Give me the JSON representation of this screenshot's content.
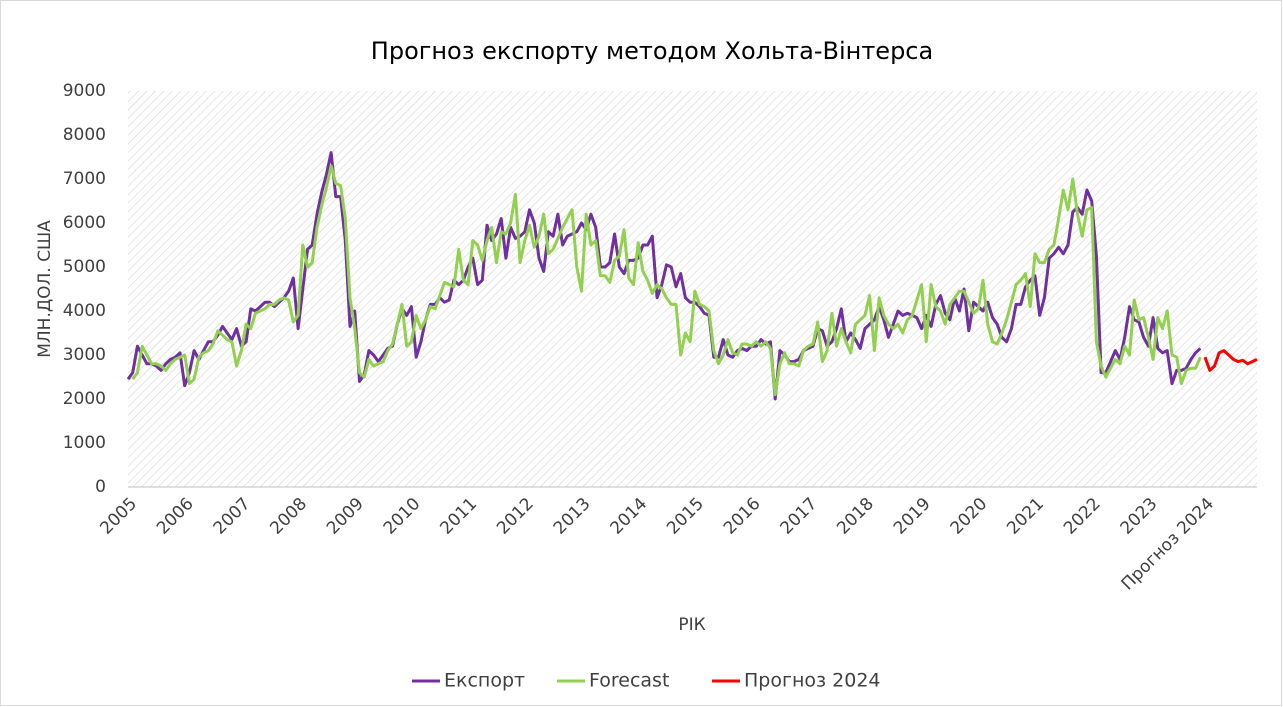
{
  "chart_data": {
    "type": "line",
    "title": "Прогноз експорту методом Хольта-Вінтерса",
    "x_label": "РІК",
    "y_label": "МЛН.ДОЛ. США",
    "categories": [
      "2005",
      null,
      null,
      null,
      null,
      null,
      null,
      null,
      null,
      null,
      null,
      null,
      "2006",
      null,
      null,
      null,
      null,
      null,
      null,
      null,
      null,
      null,
      null,
      null,
      "2007",
      null,
      null,
      null,
      null,
      null,
      null,
      null,
      null,
      null,
      null,
      null,
      "2008",
      null,
      null,
      null,
      null,
      null,
      null,
      null,
      null,
      null,
      null,
      null,
      "2009",
      null,
      null,
      null,
      null,
      null,
      null,
      null,
      null,
      null,
      null,
      null,
      "2010",
      null,
      null,
      null,
      null,
      null,
      null,
      null,
      null,
      null,
      null,
      null,
      "2011",
      null,
      null,
      null,
      null,
      null,
      null,
      null,
      null,
      null,
      null,
      null,
      "2012",
      null,
      null,
      null,
      null,
      null,
      null,
      null,
      null,
      null,
      null,
      null,
      "2013",
      null,
      null,
      null,
      null,
      null,
      null,
      null,
      null,
      null,
      null,
      null,
      "2014",
      null,
      null,
      null,
      null,
      null,
      null,
      null,
      null,
      null,
      null,
      null,
      "2015",
      null,
      null,
      null,
      null,
      null,
      null,
      null,
      null,
      null,
      null,
      null,
      "2016",
      null,
      null,
      null,
      null,
      null,
      null,
      null,
      null,
      null,
      null,
      null,
      "2017",
      null,
      null,
      null,
      null,
      null,
      null,
      null,
      null,
      null,
      null,
      null,
      "2018",
      null,
      null,
      null,
      null,
      null,
      null,
      null,
      null,
      null,
      null,
      null,
      "2019",
      null,
      null,
      null,
      null,
      null,
      null,
      null,
      null,
      null,
      null,
      null,
      "2020",
      null,
      null,
      null,
      null,
      null,
      null,
      null,
      null,
      null,
      null,
      null,
      "2021",
      null,
      null,
      null,
      null,
      null,
      null,
      null,
      null,
      null,
      null,
      null,
      "2022",
      null,
      null,
      null,
      null,
      null,
      null,
      null,
      null,
      null,
      null,
      null,
      "2023",
      null,
      null,
      null,
      null,
      null,
      null,
      null,
      null,
      null,
      null,
      null,
      "Прогноз 2024",
      null,
      null,
      null,
      null,
      null,
      null,
      null,
      null,
      null,
      null,
      null
    ],
    "series": [
      {
        "name": "Експорт",
        "color": "#7030a0",
        "values": [
          2450,
          2600,
          3200,
          3000,
          2800,
          2800,
          2750,
          2650,
          2800,
          2900,
          2950,
          3050,
          2300,
          2600,
          3100,
          2900,
          3100,
          3300,
          3300,
          3450,
          3650,
          3500,
          3350,
          3600,
          3200,
          3300,
          4050,
          4000,
          4100,
          4200,
          4200,
          4100,
          4200,
          4300,
          4450,
          4750,
          3600,
          4500,
          5400,
          5500,
          6200,
          6700,
          7100,
          7600,
          6600,
          6600,
          5600,
          3650,
          4000,
          2400,
          2550,
          3100,
          3000,
          2850,
          3000,
          3150,
          3200,
          3700,
          4050,
          3900,
          4100,
          2950,
          3300,
          3800,
          4150,
          4150,
          4300,
          4200,
          4250,
          4700,
          4600,
          4700,
          5000,
          5200,
          4600,
          4700,
          5950,
          5600,
          5750,
          6100,
          5200,
          5900,
          5650,
          5700,
          5800,
          6300,
          6000,
          5200,
          4900,
          5800,
          5700,
          6200,
          5500,
          5700,
          5750,
          5800,
          6000,
          5850,
          6200,
          5900,
          5000,
          5000,
          5100,
          5750,
          5000,
          4850,
          5150,
          5150,
          5200,
          5500,
          5500,
          5700,
          4300,
          4600,
          5050,
          5000,
          4550,
          4850,
          4300,
          4200,
          4200,
          4100,
          3950,
          3900,
          2950,
          2950,
          3350,
          3000,
          2950,
          3100,
          3150,
          3100,
          3200,
          3200,
          3350,
          3250,
          3300,
          2000,
          3100,
          3000,
          2850,
          2850,
          2900,
          3100,
          3150,
          3200,
          3600,
          3550,
          3200,
          3300,
          3600,
          4050,
          3300,
          3500,
          3350,
          3150,
          3600,
          3700,
          3800,
          4100,
          3800,
          3400,
          3700,
          4000,
          3900,
          3950,
          3900,
          3850,
          3600,
          3900,
          3650,
          4150,
          4350,
          3950,
          3800,
          4300,
          4000,
          4500,
          3550,
          4200,
          4100,
          4000,
          4200,
          3850,
          3700,
          3400,
          3300,
          3600,
          4150,
          4150,
          4550,
          4700,
          4800,
          3900,
          4300,
          5200,
          5300,
          5450,
          5300,
          5500,
          6250,
          6350,
          6200,
          6750,
          6500,
          5250,
          2600,
          2600,
          2850,
          3100,
          2900,
          3400,
          4100,
          3800,
          3750,
          3400,
          3200,
          3850,
          3150,
          3050,
          3100,
          2350,
          2650,
          2650,
          2700,
          2900,
          3050,
          3150,
          null,
          null,
          null,
          null,
          null,
          null,
          null,
          null,
          null,
          null,
          null,
          null
        ]
      },
      {
        "name": "Forecast",
        "color": "#92d050",
        "values": [
          null,
          2450,
          2600,
          3200,
          3000,
          2800,
          2800,
          2750,
          2650,
          2800,
          2900,
          2950,
          3000,
          2350,
          2450,
          2950,
          3050,
          3100,
          3250,
          3550,
          3450,
          3350,
          3300,
          2750,
          3100,
          3700,
          3600,
          3950,
          4000,
          4050,
          4150,
          4150,
          4250,
          4300,
          4250,
          3750,
          3900,
          5500,
          5000,
          5100,
          5900,
          6400,
          6800,
          7300,
          6900,
          6850,
          6100,
          4300,
          3600,
          2600,
          2500,
          2900,
          2750,
          2800,
          2850,
          3100,
          3250,
          3700,
          4150,
          3200,
          3300,
          3900,
          3600,
          3800,
          4100,
          4050,
          4350,
          4650,
          4600,
          4550,
          5400,
          4700,
          4600,
          5600,
          5500,
          5150,
          5600,
          5900,
          5100,
          5800,
          5750,
          6000,
          6650,
          5100,
          5600,
          5950,
          5450,
          5700,
          6200,
          5300,
          5400,
          5650,
          5900,
          6100,
          6300,
          5000,
          4450,
          6200,
          5500,
          5600,
          4800,
          4800,
          4650,
          5150,
          5250,
          5850,
          4750,
          4600,
          5550,
          4900,
          4700,
          4400,
          4600,
          4500,
          4300,
          4150,
          4150,
          3000,
          3500,
          3300,
          4450,
          4150,
          4100,
          4000,
          3100,
          2800,
          3000,
          3350,
          3050,
          3000,
          3250,
          3250,
          3200,
          3300,
          3200,
          3300,
          3150,
          2100,
          2800,
          3050,
          2800,
          2800,
          2750,
          3100,
          3200,
          3250,
          3750,
          2850,
          3100,
          3950,
          3200,
          3600,
          3300,
          3050,
          3700,
          3800,
          3900,
          4350,
          3100,
          4300,
          3900,
          3700,
          3600,
          3700,
          3500,
          3800,
          3900,
          4250,
          4600,
          3300,
          4600,
          4100,
          4000,
          3700,
          4150,
          4300,
          4450,
          4450,
          4200,
          3950,
          4050,
          4700,
          3700,
          3300,
          3250,
          3500,
          3800,
          4200,
          4600,
          4700,
          4850,
          4100,
          5300,
          5100,
          5100,
          5400,
          5500,
          6100,
          6750,
          6300,
          7000,
          6200,
          5700,
          6300,
          6350,
          3300,
          2750,
          2500,
          2700,
          2900,
          2800,
          3200,
          3000,
          4250,
          3800,
          3850,
          3400,
          2900,
          3850,
          3600,
          4000,
          3000,
          2950,
          2350,
          2650,
          2700,
          2700,
          2950,
          null,
          null,
          null,
          null,
          null,
          null,
          null,
          null,
          null,
          null,
          null,
          null
        ]
      },
      {
        "name": "Прогноз 2024",
        "color": "#ff0000",
        "values": [
          null,
          null,
          null,
          null,
          null,
          null,
          null,
          null,
          null,
          null,
          null,
          null,
          null,
          null,
          null,
          null,
          null,
          null,
          null,
          null,
          null,
          null,
          null,
          null,
          null,
          null,
          null,
          null,
          null,
          null,
          null,
          null,
          null,
          null,
          null,
          null,
          null,
          null,
          null,
          null,
          null,
          null,
          null,
          null,
          null,
          null,
          null,
          null,
          null,
          null,
          null,
          null,
          null,
          null,
          null,
          null,
          null,
          null,
          null,
          null,
          null,
          null,
          null,
          null,
          null,
          null,
          null,
          null,
          null,
          null,
          null,
          null,
          null,
          null,
          null,
          null,
          null,
          null,
          null,
          null,
          null,
          null,
          null,
          null,
          null,
          null,
          null,
          null,
          null,
          null,
          null,
          null,
          null,
          null,
          null,
          null,
          null,
          null,
          null,
          null,
          null,
          null,
          null,
          null,
          null,
          null,
          null,
          null,
          null,
          null,
          null,
          null,
          null,
          null,
          null,
          null,
          null,
          null,
          null,
          null,
          null,
          null,
          null,
          null,
          null,
          null,
          null,
          null,
          null,
          null,
          null,
          null,
          null,
          null,
          null,
          null,
          null,
          null,
          null,
          null,
          null,
          null,
          null,
          null,
          null,
          null,
          null,
          null,
          null,
          null,
          null,
          null,
          null,
          null,
          null,
          null,
          null,
          null,
          null,
          null,
          null,
          null,
          null,
          null,
          null,
          null,
          null,
          null,
          null,
          null,
          null,
          null,
          null,
          null,
          null,
          null,
          null,
          null,
          null,
          null,
          null,
          null,
          null,
          null,
          null,
          null,
          null,
          null,
          null,
          null,
          null,
          null,
          null,
          null,
          null,
          null,
          null,
          null,
          null,
          null,
          null,
          null,
          null,
          null,
          null,
          null,
          null,
          null,
          null,
          null,
          null,
          null,
          null,
          null,
          null,
          null,
          null,
          null,
          null,
          null,
          null,
          null,
          null,
          null,
          null,
          null,
          null,
          null,
          2950,
          2650,
          2750,
          3050,
          3100,
          3000,
          2900,
          2850,
          2880,
          2800,
          2850,
          2900
        ]
      }
    ],
    "ylim": [
      0,
      9000
    ],
    "yticks": [
      0,
      1000,
      2000,
      3000,
      4000,
      5000,
      6000,
      7000,
      8000,
      9000
    ],
    "grid": false,
    "legend": "bottom"
  }
}
